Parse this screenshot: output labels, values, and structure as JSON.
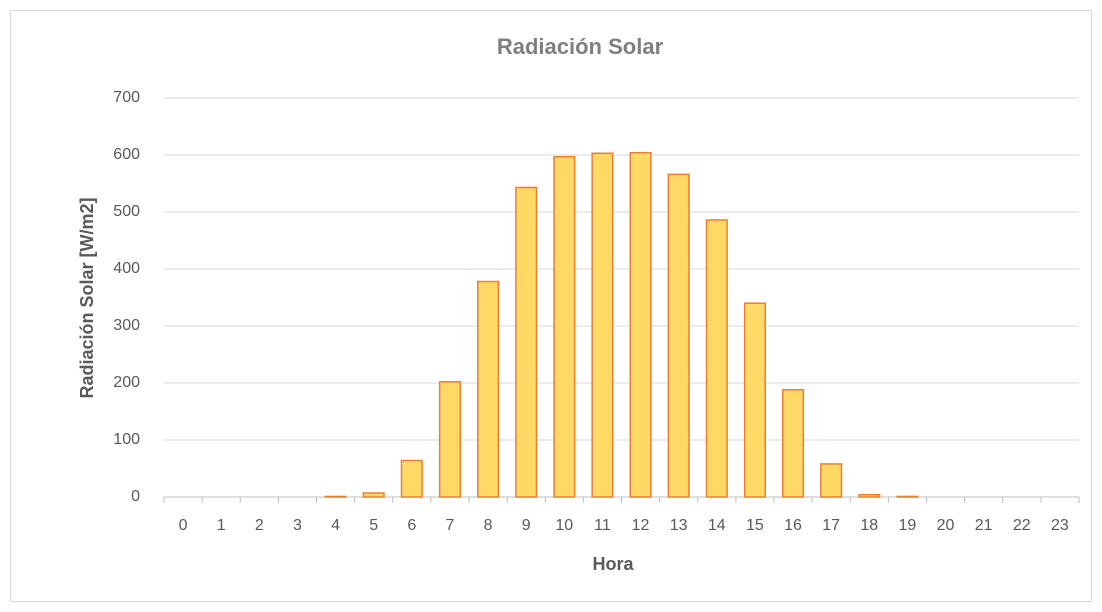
{
  "chart_data": {
    "type": "bar",
    "title": "Radiación Solar",
    "x_label": "Hora",
    "y_label": "Radiación Solar [W/m2]",
    "categories": [
      "0",
      "1",
      "2",
      "3",
      "4",
      "5",
      "6",
      "7",
      "8",
      "9",
      "10",
      "11",
      "12",
      "13",
      "14",
      "15",
      "16",
      "17",
      "18",
      "19",
      "20",
      "21",
      "22",
      "23"
    ],
    "values": [
      0,
      0,
      0,
      0,
      1,
      7,
      64,
      202,
      378,
      543,
      597,
      603,
      604,
      566,
      486,
      340,
      188,
      58,
      4,
      1,
      0,
      0,
      0,
      0
    ],
    "color": "#ffd966",
    "edge_color": "#ed7d31",
    "ylim": [
      0,
      700
    ],
    "yticks": [
      0,
      100,
      200,
      300,
      400,
      500,
      600,
      700
    ],
    "grid": true
  }
}
